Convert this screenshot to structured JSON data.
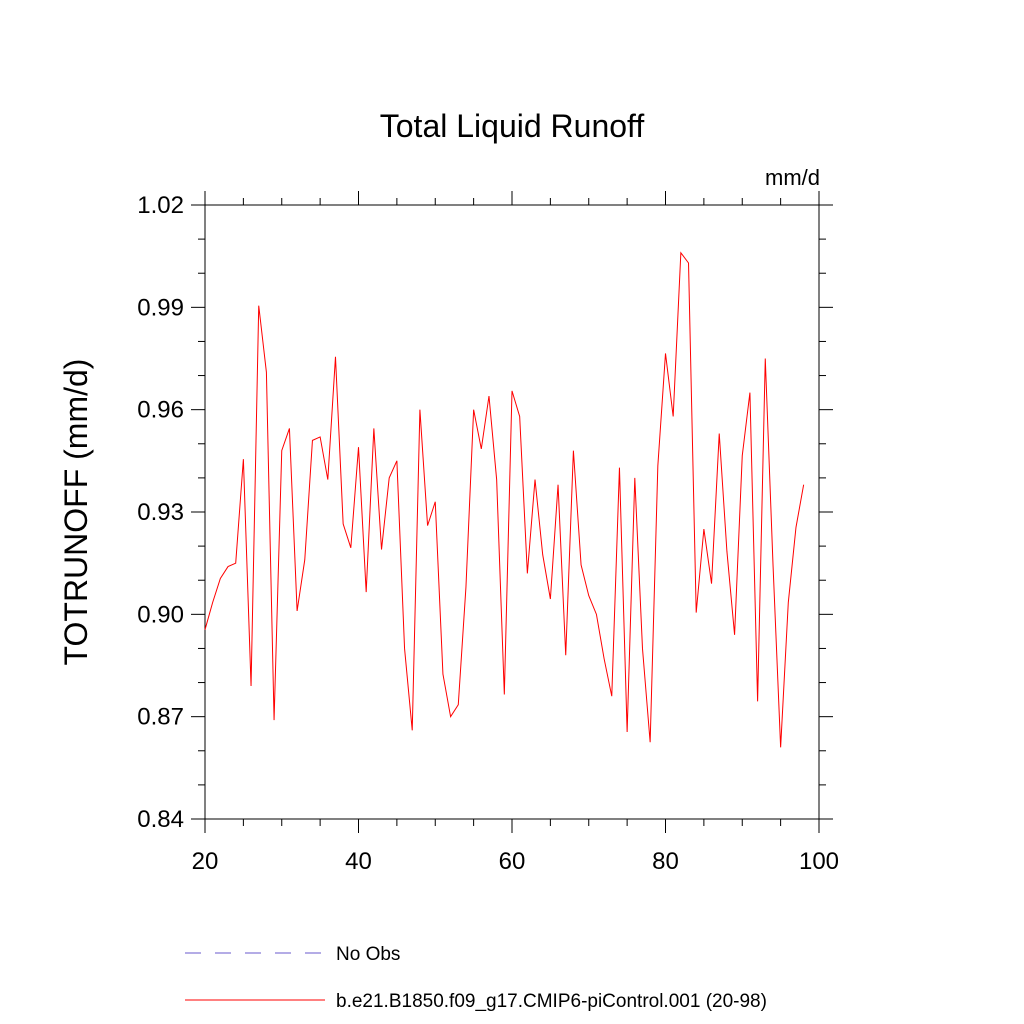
{
  "chart_data": {
    "type": "line",
    "title": "Total Liquid Runoff",
    "units": "mm/d",
    "ylabel": "TOTRUNOFF  (mm/d)",
    "xlabel": "",
    "xlim": [
      20,
      100
    ],
    "ylim": [
      0.84,
      1.02
    ],
    "x_ticks": [
      20,
      40,
      60,
      80,
      100
    ],
    "x_tick_labels": [
      "20",
      "40",
      "60",
      "80",
      "100"
    ],
    "y_ticks": [
      0.84,
      0.87,
      0.9,
      0.93,
      0.96,
      0.99,
      1.02
    ],
    "y_tick_labels": [
      "0.84",
      "0.87",
      "0.90",
      "0.93",
      "0.96",
      "0.99",
      "1.02"
    ],
    "grid": false,
    "legend_position": "bottom",
    "legend": [
      {
        "label": "No Obs",
        "color": "#6a5acd",
        "style": "dashed"
      },
      {
        "label": "b.e21.B1850.f09_g17.CMIP6-piControl.001 (20-98)",
        "color": "#ff0000",
        "style": "solid"
      }
    ],
    "series": [
      {
        "name": "b.e21.B1850.f09_g17.CMIP6-piControl.001 (20-98)",
        "color": "#ff0000",
        "x": [
          20,
          21,
          22,
          23,
          24,
          25,
          26,
          27,
          28,
          29,
          30,
          31,
          32,
          33,
          34,
          35,
          36,
          37,
          38,
          39,
          40,
          41,
          42,
          43,
          44,
          45,
          46,
          47,
          48,
          49,
          50,
          51,
          52,
          53,
          54,
          55,
          56,
          57,
          58,
          59,
          60,
          61,
          62,
          63,
          64,
          65,
          66,
          67,
          68,
          69,
          70,
          71,
          72,
          73,
          74,
          75,
          76,
          77,
          78,
          79,
          80,
          81,
          82,
          83,
          84,
          85,
          86,
          87,
          88,
          89,
          90,
          91,
          92,
          93,
          94,
          95,
          96,
          97,
          98
        ],
        "y": [
          0.8955,
          0.9035,
          0.9105,
          0.914,
          0.915,
          0.9455,
          0.879,
          0.9905,
          0.971,
          0.869,
          0.948,
          0.9545,
          0.901,
          0.916,
          0.951,
          0.952,
          0.9395,
          0.9755,
          0.9265,
          0.9195,
          0.949,
          0.9065,
          0.9545,
          0.919,
          0.94,
          0.945,
          0.89,
          0.866,
          0.96,
          0.926,
          0.933,
          0.8825,
          0.87,
          0.8735,
          0.908,
          0.96,
          0.9485,
          0.964,
          0.9395,
          0.8765,
          0.9655,
          0.958,
          0.912,
          0.9395,
          0.9175,
          0.9045,
          0.938,
          0.888,
          0.948,
          0.9145,
          0.9055,
          0.9,
          0.887,
          0.876,
          0.943,
          0.8655,
          0.94,
          0.89,
          0.8625,
          0.9435,
          0.9765,
          0.958,
          1.006,
          1.003,
          0.9005,
          0.925,
          0.909,
          0.953,
          0.9185,
          0.894,
          0.9465,
          0.965,
          0.8745,
          0.975,
          0.915,
          0.861,
          0.9035,
          0.9255,
          0.938
        ]
      }
    ]
  }
}
